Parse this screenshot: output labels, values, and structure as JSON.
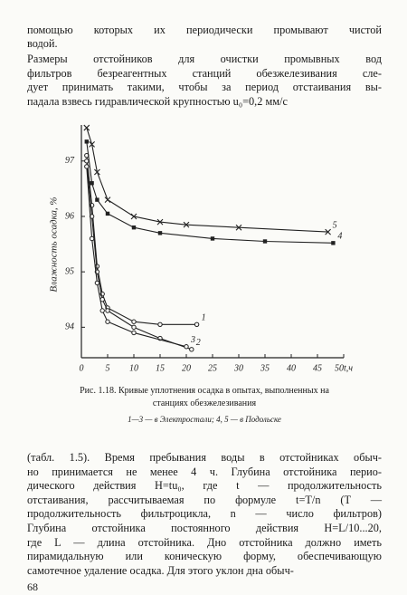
{
  "top_text": {
    "lines": [
      "помощью которых их периодически промывают чистой",
      "водой."
    ]
  },
  "paragraph": {
    "lines": [
      "Размеры отстойников для очистки промывных вод",
      "фильтров безреагентных станций обезжелезивания сле-",
      "дует принимать такими, чтобы за период отстаивания вы-",
      "падала взвесь гидравлической крупностью u₀=0,2 мм/с"
    ]
  },
  "chart_data": {
    "type": "line",
    "y_label": "Влажность осадка, %",
    "xlim": [
      0,
      50
    ],
    "xticks": [
      0,
      5,
      10,
      15,
      20,
      25,
      30,
      35,
      40,
      45,
      {
        "value": 50,
        "label": "50t,ч"
      }
    ],
    "ylim": [
      93.45,
      97.65
    ],
    "yticks": [
      94,
      95,
      96,
      97
    ],
    "grid": false,
    "series": [
      {
        "name": "1",
        "color": "#222222",
        "marker": "circle",
        "x": [
          1,
          2,
          3,
          4,
          5,
          10,
          15,
          22
        ],
        "values": [
          97.1,
          96.2,
          95.1,
          94.6,
          94.35,
          94.1,
          94.05,
          94.05
        ]
      },
      {
        "name": "2",
        "color": "#222222",
        "marker": "circle",
        "x": [
          1,
          2,
          3,
          4,
          5,
          10,
          15,
          21
        ],
        "values": [
          97.0,
          96.0,
          95.0,
          94.5,
          94.3,
          94.0,
          93.8,
          93.6
        ]
      },
      {
        "name": "3",
        "color": "#222222",
        "marker": "circle",
        "x": [
          1,
          2,
          3,
          4,
          5,
          10,
          20
        ],
        "values": [
          96.9,
          95.6,
          94.8,
          94.3,
          94.1,
          93.9,
          93.65
        ]
      },
      {
        "name": "4",
        "color": "#222222",
        "marker": "square",
        "x": [
          1,
          2,
          3,
          5,
          10,
          15,
          25,
          35,
          48
        ],
        "values": [
          97.35,
          96.6,
          96.3,
          96.05,
          95.8,
          95.7,
          95.6,
          95.55,
          95.52
        ]
      },
      {
        "name": "5",
        "color": "#222222",
        "marker": "cross",
        "x": [
          1,
          2,
          3,
          5,
          10,
          15,
          20,
          30,
          47
        ],
        "values": [
          97.6,
          97.3,
          96.8,
          96.3,
          96.0,
          95.9,
          95.85,
          95.8,
          95.72
        ]
      }
    ]
  },
  "figure_caption": {
    "title_lines": [
      "Рис. 1.18. Кривые уплотнения осадка в опытах, выполненных на",
      "станциях обезжелезивания"
    ],
    "legend": "1—3 — в Электростали; 4, 5 — в Подольске"
  },
  "bottom_text": {
    "lines": [
      "(табл. 1.5). Время пребывания воды в отстойниках обыч-",
      "но принимается не менее 4 ч. Глубина отстойника перио-",
      "дического действия H=tu₀, где t — продолжительность",
      "отстаивания, рассчитываемая по формуле t=T/n (T —",
      "продолжительность фильтроцикла, n — число фильтров)",
      "Глубина отстойника постоянного действия H=L/10...20,",
      "где L — длина отстойника. Дно отстойника должно иметь",
      "пирамидальную или коническую форму, обеспечивающую",
      "самотечное удаление осадка. Для этого уклон дна обыч-"
    ]
  },
  "page_number": "68"
}
